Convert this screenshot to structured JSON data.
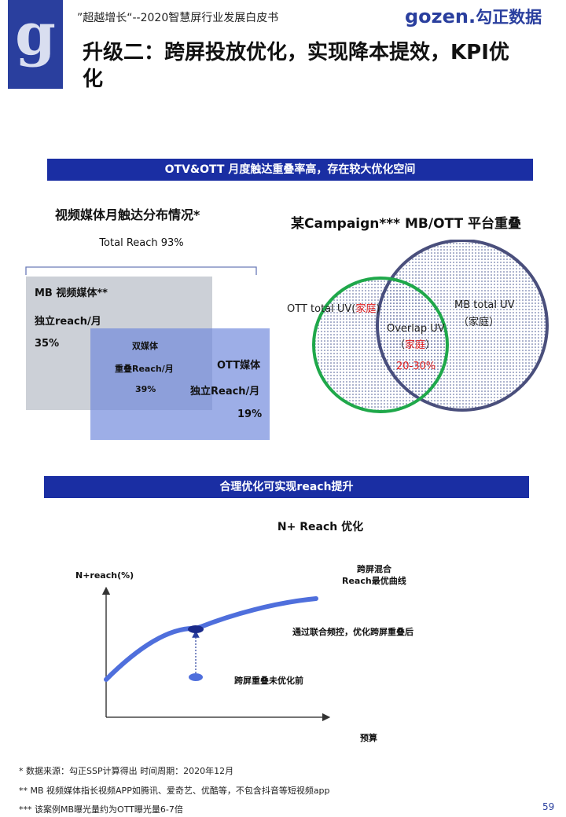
{
  "header": {
    "logo_letter": "g",
    "subtitle": "”超越增长“--2020智慧屏行业发展白皮书",
    "brand": "gozen.",
    "brand_cn": "勾正数据"
  },
  "title": "升级二：跨屏投放优化，实现降本提效，KPI优化",
  "banner1": "OTV&OTT 月度触达重叠率高，存在较大优化空间",
  "reach_section": {
    "heading": "视频媒体月触达分布情况*",
    "total_reach": "Total Reach  93%",
    "mb_title": "MB 视频媒体**",
    "mb_sub": "独立reach/月",
    "mb_value": "35%",
    "dual_title": "双媒体",
    "dual_sub": "重叠Reach/月",
    "dual_value": "39%",
    "ott_title": "OTT媒体",
    "ott_sub": "独立Reach/月",
    "ott_value": "19%"
  },
  "venn_section": {
    "heading": "某Campaign*** MB/OTT 平台重叠",
    "ott_label": "OTT total UV(",
    "ott_label_red": "家庭",
    "ott_label_end": ")",
    "mb_label": "MB total UV",
    "mb_label_sub": "（家庭）",
    "overlap_label": "Overlap UV",
    "overlap_sub_open": "（",
    "overlap_sub_red": "家庭",
    "overlap_sub_close": "）",
    "overlap_value": "20-30%",
    "colors": {
      "ott_circle": "#1fa84a",
      "mb_circle": "#4a4f7c",
      "overlap_text": "#e02020"
    }
  },
  "banner2": "合理优化可实现reach提升",
  "curve_chart": {
    "title": "N+ Reach 优化",
    "y_axis_label": "N+reach(%)",
    "x_axis_label": "预算",
    "curve_label_line1": "跨屏混合",
    "curve_label_line2": "Reach最优曲线",
    "optimized_label": "通过联合频控，优化跨屏重叠后",
    "before_label": "跨屏重叠未优化前"
  },
  "footnotes": [
    "*    数据来源：勾正SSP计算得出  时间周期：2020年12月",
    "**    MB 视频媒体指长视频APP如腾讯、爱奇艺、优酷等，不包含抖音等短视频app",
    "*** 该案例MB曝光量约为OTT曝光量6-7倍"
  ],
  "page_number": "59"
}
